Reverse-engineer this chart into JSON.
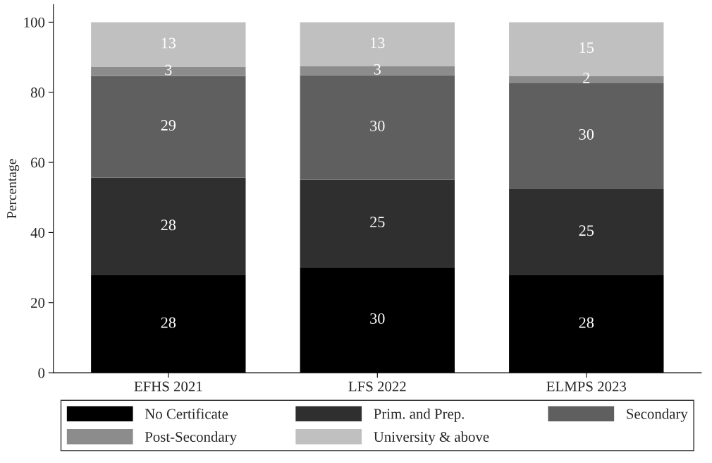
{
  "chart_data": {
    "type": "bar",
    "stacked": true,
    "ylabel": "Percentage",
    "categories": [
      "EFHS 2021",
      "LFS 2022",
      "ELMPS 2023"
    ],
    "series": [
      {
        "name": "No Certificate",
        "color": "#000000",
        "values": [
          27.8,
          30.1,
          27.8
        ],
        "value_labels": [
          "28",
          "30",
          "28"
        ]
      },
      {
        "name": "Prim. and Prep.",
        "color": "#2f2f2f",
        "values": [
          27.9,
          25.0,
          24.7
        ],
        "value_labels": [
          "28",
          "25",
          "25"
        ]
      },
      {
        "name": "Secondary",
        "color": "#5f5f5f",
        "values": [
          29.0,
          29.8,
          30.2
        ],
        "value_labels": [
          "29",
          "30",
          "30"
        ]
      },
      {
        "name": "Post-Secondary",
        "color": "#8c8c8c",
        "values": [
          2.6,
          2.5,
          2.0
        ],
        "value_labels": [
          "3",
          "3",
          "2"
        ]
      },
      {
        "name": "University & above",
        "color": "#c0c0c0",
        "values": [
          12.7,
          12.6,
          15.3
        ],
        "value_labels": [
          "13",
          "13",
          "15"
        ]
      }
    ],
    "ylim": [
      0,
      105
    ],
    "yticks": [
      0,
      20,
      40,
      60,
      80,
      100
    ],
    "grid": false,
    "legend": "bottom"
  }
}
